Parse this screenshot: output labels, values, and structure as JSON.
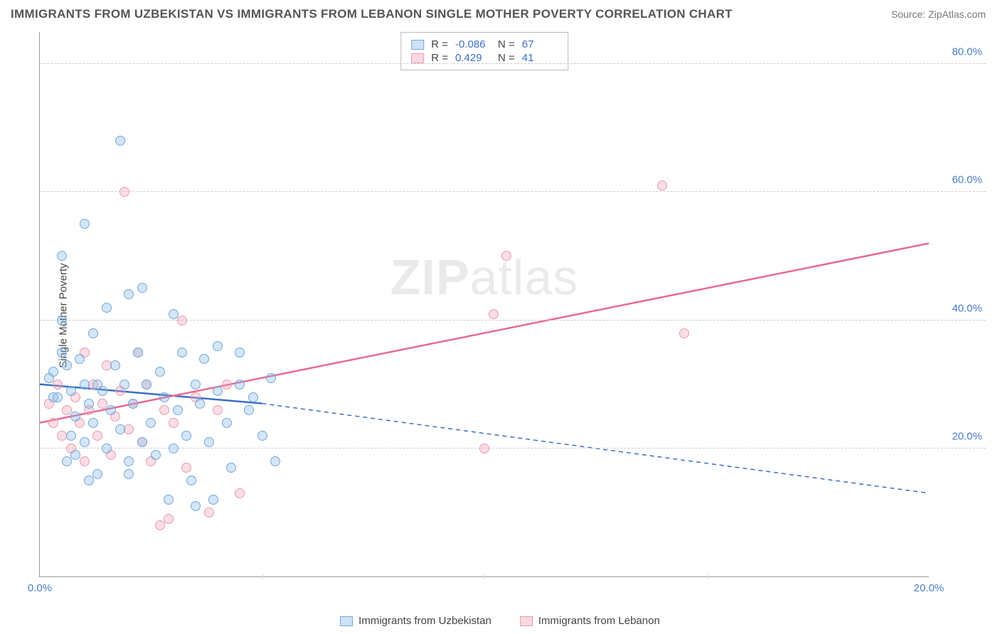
{
  "title": "IMMIGRANTS FROM UZBEKISTAN VS IMMIGRANTS FROM LEBANON SINGLE MOTHER POVERTY CORRELATION CHART",
  "source": "Source: ZipAtlas.com",
  "ylabel": "Single Mother Poverty",
  "watermark_bold": "ZIP",
  "watermark_thin": "atlas",
  "stats": {
    "s1": {
      "r_label": "R =",
      "r_val": "-0.086",
      "n_label": "N =",
      "n_val": "67"
    },
    "s2": {
      "r_label": "R =",
      "r_val": "0.429",
      "n_label": "N =",
      "n_val": "41"
    }
  },
  "legend": {
    "a": "Immigrants from Uzbekistan",
    "b": "Immigrants from Lebanon"
  },
  "chart": {
    "type": "scatter",
    "xlim": [
      0,
      20
    ],
    "ylim": [
      0,
      85
    ],
    "xticks": [
      0,
      20
    ],
    "xtick_labels": [
      "0.0%",
      "20.0%"
    ],
    "yticks": [
      20,
      40,
      60,
      80
    ],
    "ytick_labels": [
      "20.0%",
      "40.0%",
      "60.0%",
      "80.0%"
    ],
    "xtick_minors": [
      5,
      10,
      15
    ],
    "background": "#ffffff",
    "grid_color": "#cccccc",
    "axis_color": "#999999",
    "tick_label_color": "#4a7ec9",
    "series_blue": {
      "color_fill": "rgba(135,180,230,0.35)",
      "color_stroke": "#6fa8dc",
      "marker_size": 14,
      "trend": {
        "color": "#3b6fc4",
        "width": 2.5,
        "x1": 0,
        "y1": 30,
        "x2": 5,
        "y2": 27,
        "dash_x2": 20,
        "dash_y2": 13
      },
      "points": [
        [
          0.2,
          31
        ],
        [
          0.3,
          28
        ],
        [
          0.3,
          32
        ],
        [
          0.4,
          28
        ],
        [
          0.5,
          50
        ],
        [
          0.5,
          40
        ],
        [
          0.5,
          35
        ],
        [
          0.6,
          33
        ],
        [
          0.7,
          29
        ],
        [
          0.7,
          22
        ],
        [
          0.8,
          25
        ],
        [
          0.8,
          19
        ],
        [
          0.9,
          34
        ],
        [
          1.0,
          30
        ],
        [
          1.0,
          21
        ],
        [
          1.0,
          55
        ],
        [
          1.1,
          27
        ],
        [
          1.2,
          38
        ],
        [
          1.2,
          24
        ],
        [
          1.3,
          16
        ],
        [
          1.3,
          30
        ],
        [
          1.4,
          29
        ],
        [
          1.5,
          42
        ],
        [
          1.5,
          20
        ],
        [
          1.6,
          26
        ],
        [
          1.7,
          33
        ],
        [
          1.8,
          68
        ],
        [
          1.8,
          23
        ],
        [
          1.9,
          30
        ],
        [
          2.0,
          44
        ],
        [
          2.0,
          18
        ],
        [
          2.1,
          27
        ],
        [
          2.2,
          35
        ],
        [
          2.3,
          21
        ],
        [
          2.3,
          45
        ],
        [
          2.4,
          30
        ],
        [
          2.5,
          24
        ],
        [
          2.6,
          19
        ],
        [
          2.7,
          32
        ],
        [
          2.8,
          28
        ],
        [
          2.9,
          12
        ],
        [
          3.0,
          41
        ],
        [
          3.0,
          20
        ],
        [
          3.1,
          26
        ],
        [
          3.2,
          35
        ],
        [
          3.3,
          22
        ],
        [
          3.4,
          15
        ],
        [
          3.5,
          30
        ],
        [
          3.5,
          11
        ],
        [
          3.6,
          27
        ],
        [
          3.7,
          34
        ],
        [
          3.8,
          21
        ],
        [
          4.0,
          29
        ],
        [
          4.0,
          36
        ],
        [
          4.2,
          24
        ],
        [
          4.3,
          17
        ],
        [
          4.5,
          30
        ],
        [
          4.5,
          35
        ],
        [
          4.7,
          26
        ],
        [
          4.8,
          28
        ],
        [
          5.0,
          22
        ],
        [
          5.2,
          31
        ],
        [
          5.3,
          18
        ],
        [
          3.9,
          12
        ],
        [
          2.0,
          16
        ],
        [
          1.1,
          15
        ],
        [
          0.6,
          18
        ]
      ]
    },
    "series_pink": {
      "color_fill": "rgba(240,160,180,0.35)",
      "color_stroke": "#e89ab0",
      "marker_size": 14,
      "trend": {
        "color": "#e86a8f",
        "width": 2.5,
        "x1": 0,
        "y1": 24,
        "x2": 20,
        "y2": 52
      },
      "points": [
        [
          0.2,
          27
        ],
        [
          0.3,
          24
        ],
        [
          0.4,
          30
        ],
        [
          0.5,
          22
        ],
        [
          0.6,
          26
        ],
        [
          0.7,
          20
        ],
        [
          0.8,
          28
        ],
        [
          0.9,
          24
        ],
        [
          1.0,
          35
        ],
        [
          1.0,
          18
        ],
        [
          1.1,
          26
        ],
        [
          1.2,
          30
        ],
        [
          1.3,
          22
        ],
        [
          1.4,
          27
        ],
        [
          1.5,
          33
        ],
        [
          1.6,
          19
        ],
        [
          1.7,
          25
        ],
        [
          1.8,
          29
        ],
        [
          1.9,
          60
        ],
        [
          2.0,
          23
        ],
        [
          2.1,
          27
        ],
        [
          2.2,
          35
        ],
        [
          2.3,
          21
        ],
        [
          2.4,
          30
        ],
        [
          2.5,
          18
        ],
        [
          2.7,
          8
        ],
        [
          2.8,
          26
        ],
        [
          2.9,
          9
        ],
        [
          3.0,
          24
        ],
        [
          3.2,
          40
        ],
        [
          3.3,
          17
        ],
        [
          3.5,
          28
        ],
        [
          3.8,
          10
        ],
        [
          4.0,
          26
        ],
        [
          4.2,
          30
        ],
        [
          4.5,
          13
        ],
        [
          10.0,
          20
        ],
        [
          10.2,
          41
        ],
        [
          10.5,
          50
        ],
        [
          14.0,
          61
        ],
        [
          14.5,
          38
        ]
      ]
    }
  }
}
